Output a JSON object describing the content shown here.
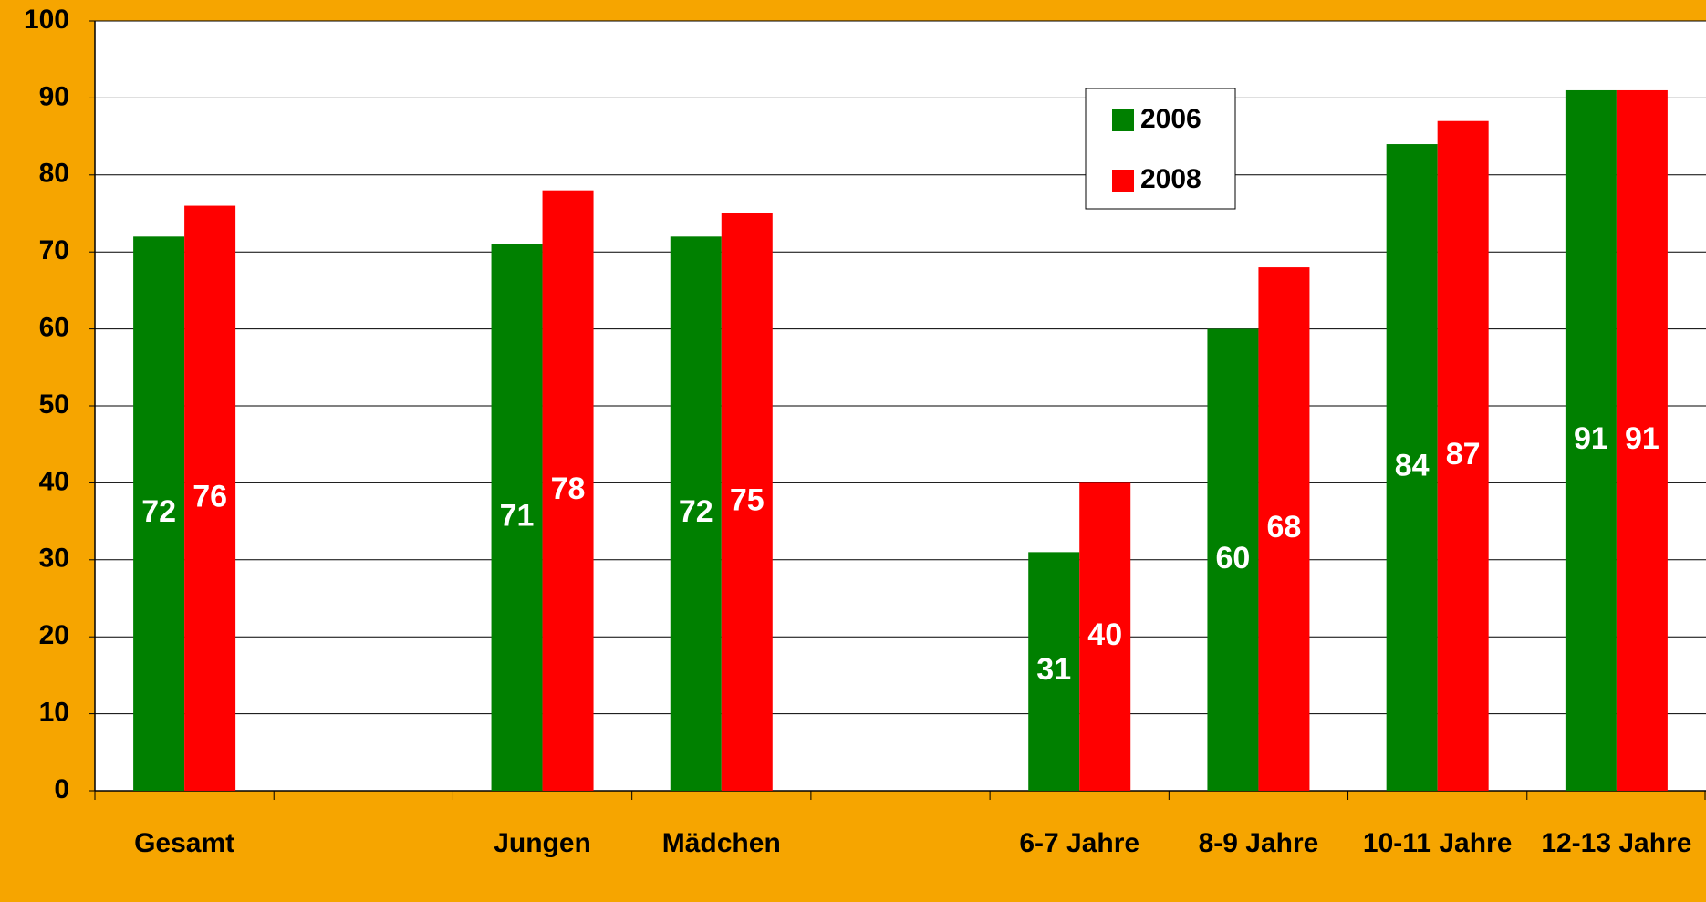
{
  "chart_data": {
    "type": "bar",
    "categories": [
      "Gesamt",
      null,
      "Jungen",
      "Mädchen",
      null,
      "6-7 Jahre",
      "8-9 Jahre",
      "10-11 Jahre",
      "12-13 Jahre"
    ],
    "series": [
      {
        "name": "2006",
        "color": "#008000",
        "values": [
          72,
          null,
          71,
          72,
          null,
          31,
          60,
          84,
          91
        ]
      },
      {
        "name": "2008",
        "color": "#ff0000",
        "values": [
          76,
          null,
          78,
          75,
          null,
          40,
          68,
          87,
          91
        ]
      }
    ],
    "ylim": [
      0,
      100
    ],
    "yticks": [
      0,
      10,
      20,
      30,
      40,
      50,
      60,
      70,
      80,
      90,
      100
    ],
    "grid": true,
    "legend": "top-right"
  }
}
